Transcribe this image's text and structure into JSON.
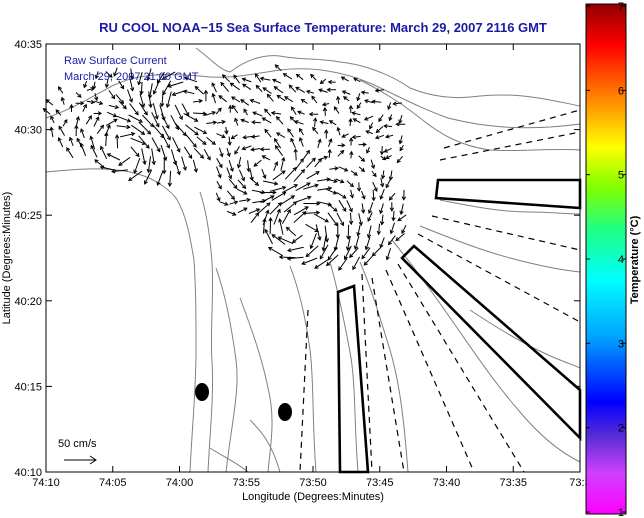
{
  "title": "RU COOL  NOAA−15  Sea Surface Temperature:  March 29, 2007 2116 GMT",
  "annotation": {
    "line1": "Raw Surface Current",
    "line2": "March 29, 2007 21:00 GMT"
  },
  "x_axis": {
    "label": "Longitude (Degrees:Minutes)",
    "ticks": [
      "74:10",
      "74:05",
      "74:00",
      "73:55",
      "73:50",
      "73:45",
      "73:40",
      "73:35",
      "73:3"
    ]
  },
  "y_axis": {
    "label": "Latitude (Degrees:Minutes)",
    "ticks": [
      "40:35",
      "40:30",
      "40:25",
      "40:20",
      "40:15",
      "40:10"
    ]
  },
  "colorbar": {
    "label": "Temperature (°C)",
    "ticks": [
      "1",
      "2",
      "3",
      "4",
      "5",
      "6",
      "7"
    ]
  },
  "scale": {
    "label": "50 cm/s"
  },
  "colors": {
    "title": "#1a1aa6",
    "annotation": "#1a1aa6",
    "contour": "#808080",
    "vector": "#000000"
  }
}
